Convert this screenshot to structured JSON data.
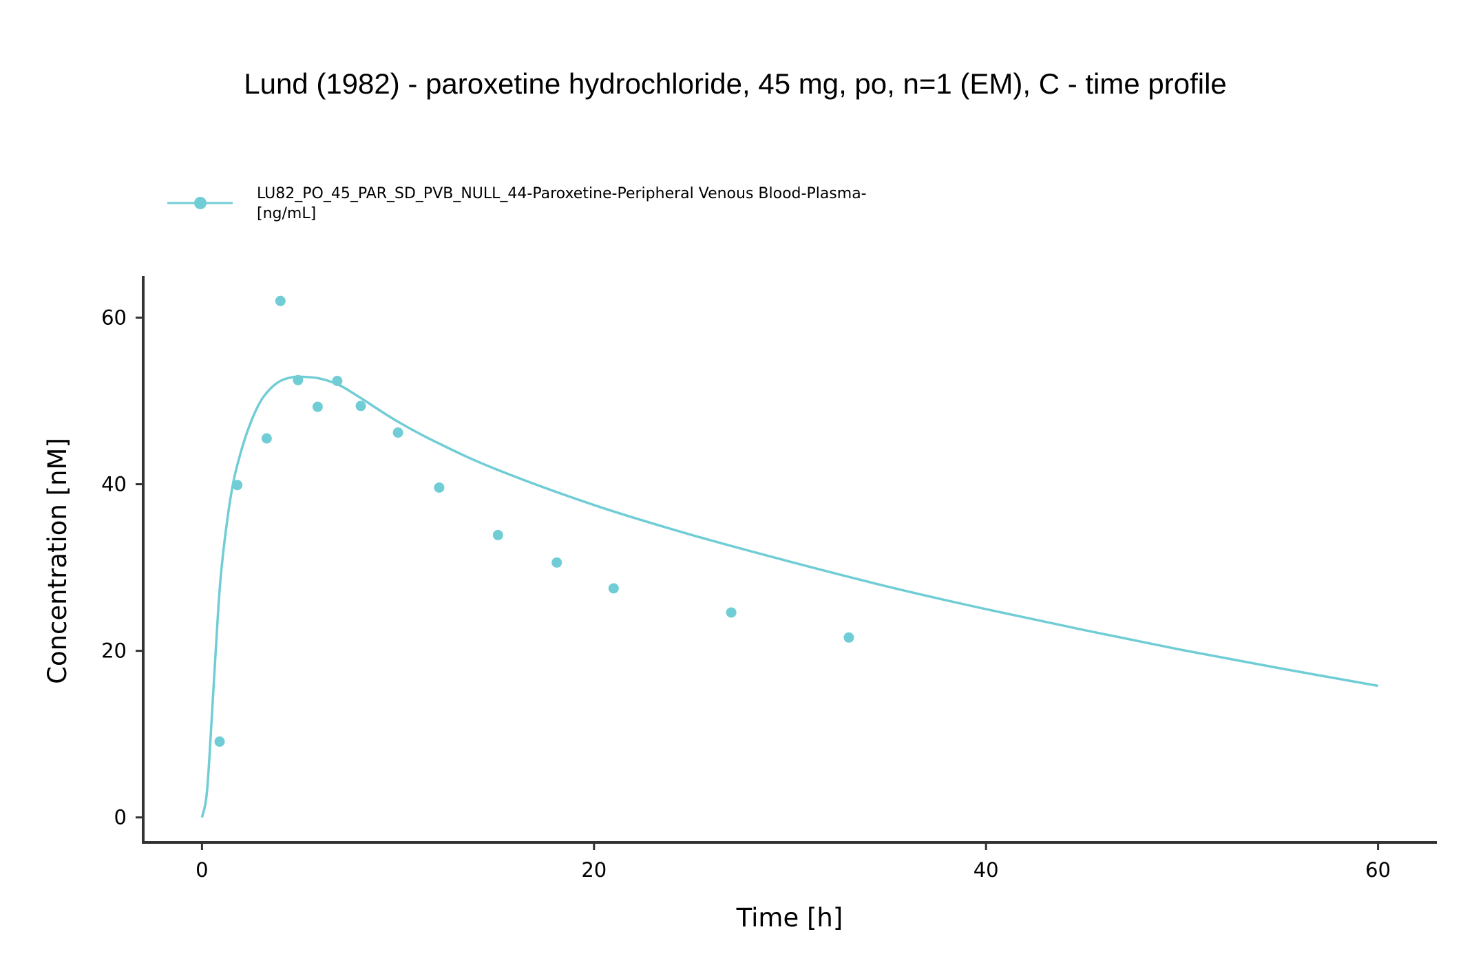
{
  "chart_data": {
    "type": "line",
    "title": "Lund (1982) - paroxetine hydrochloride, 45 mg, po, n=1 (EM), C - time profile",
    "xlabel": "Time [h]",
    "ylabel": "Concentration [nM]",
    "xlim": [
      -3,
      63
    ],
    "ylim": [
      -3,
      65
    ],
    "x_ticks": [
      0,
      20,
      40,
      60
    ],
    "y_ticks": [
      0,
      20,
      40,
      60
    ],
    "grid": false,
    "legend_position": "top-left",
    "color": "#70CDD5",
    "legend": {
      "label_line1": "LU82_PO_45_PAR_SD_PVB_NULL_44-Paroxetine-Peripheral Venous Blood-Plasma-",
      "label_line2": "[ng/mL]"
    },
    "series": [
      {
        "kind": "simulated-line",
        "x": [
          0,
          0.25,
          0.5,
          0.75,
          1,
          1.5,
          2,
          2.5,
          3,
          3.5,
          4,
          4.5,
          5,
          6,
          7,
          8,
          10,
          12,
          15,
          20,
          25,
          30,
          35,
          40,
          45,
          50,
          55,
          60
        ],
        "y": [
          0,
          3,
          12,
          22,
          30,
          39,
          44,
          47.5,
          50,
          51.5,
          52.4,
          52.8,
          52.9,
          52.7,
          51.9,
          50.5,
          47.5,
          45,
          41.8,
          37.5,
          33.9,
          30.7,
          27.7,
          25,
          22.5,
          20.1,
          17.9,
          15.8
        ]
      },
      {
        "kind": "observed-points",
        "name": "LU82_PO_45_PAR_SD_PVB_NULL_44-Paroxetine-Peripheral Venous Blood-Plasma-[ng/mL]",
        "x": [
          0.9,
          1.8,
          3.3,
          4,
          4.9,
          5.9,
          6.9,
          8.1,
          10,
          12.1,
          15.1,
          18.1,
          21,
          27,
          33
        ],
        "y": [
          9.1,
          39.9,
          45.5,
          62,
          52.5,
          49.3,
          52.4,
          49.4,
          46.2,
          39.6,
          33.9,
          30.6,
          27.5,
          24.6,
          21.6
        ]
      }
    ]
  }
}
